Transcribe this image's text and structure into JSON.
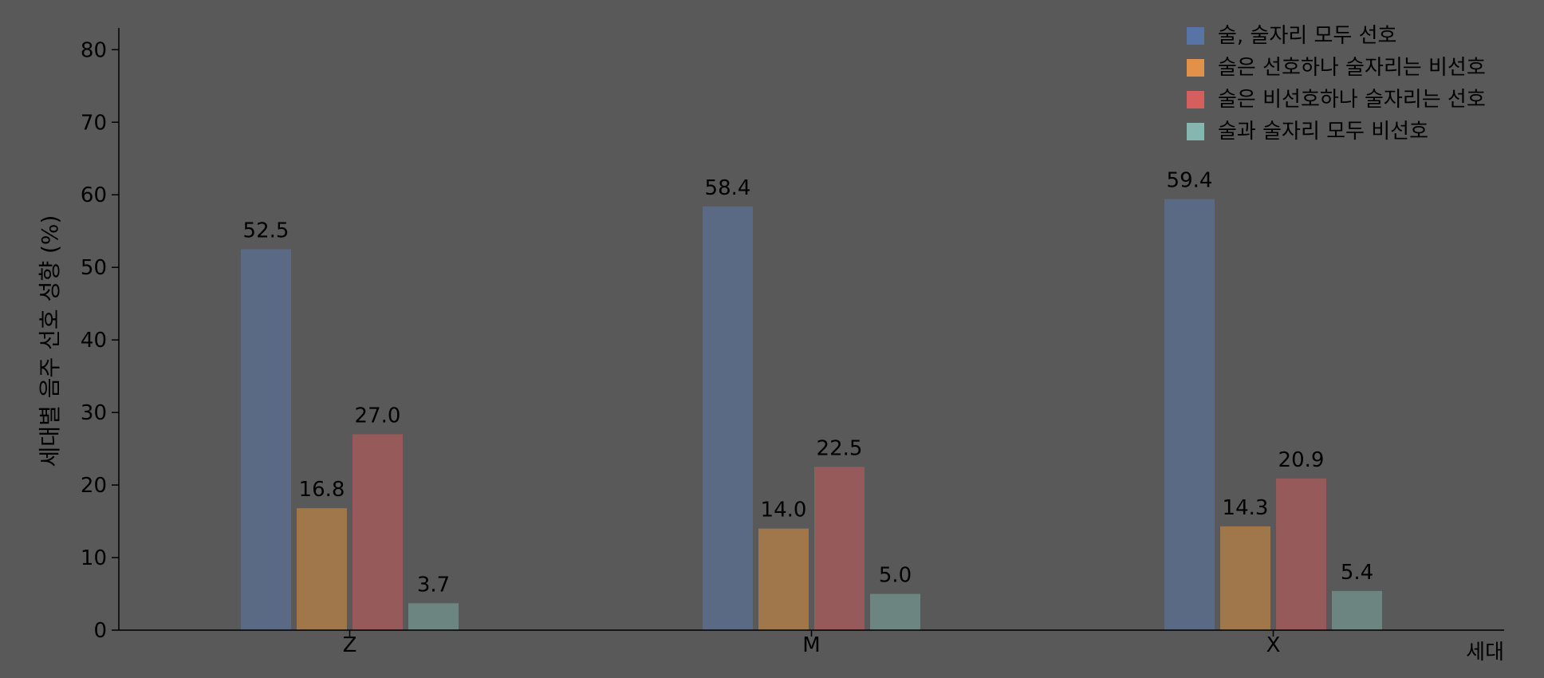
{
  "chart_data": {
    "type": "bar",
    "title": "",
    "xlabel": "세대",
    "ylabel": "세대별 음주 선호 성향 (%)",
    "categories": [
      "Z",
      "M",
      "X"
    ],
    "series": [
      {
        "name": "술, 술자리 모두 선호",
        "values": [
          52.5,
          58.4,
          59.4
        ],
        "color": "#5a6a85",
        "legend_color": "#5873a6"
      },
      {
        "name": "술은 선호하나 술자리는 비선호",
        "values": [
          16.8,
          14.0,
          14.3
        ],
        "color": "#a0774b",
        "legend_color": "#e1914a"
      },
      {
        "name": "술은 비선호하나 술자리는 선호",
        "values": [
          27.0,
          22.5,
          20.9
        ],
        "color": "#965a5a",
        "legend_color": "#d55f5f"
      },
      {
        "name": "술과 술자리 모두 비선호",
        "values": [
          3.7,
          5.0,
          5.4
        ],
        "color": "#6c8580",
        "legend_color": "#85b7b0"
      }
    ],
    "data_labels": [
      [
        "52.5",
        "58.4",
        "59.4"
      ],
      [
        "16.8",
        "14.0",
        "14.3"
      ],
      [
        "27.0",
        "22.5",
        "20.9"
      ],
      [
        "3.7",
        "5.0",
        "5.4"
      ]
    ],
    "yticks": [
      0,
      10,
      20,
      30,
      40,
      50,
      60,
      70,
      80
    ],
    "ylim": [
      0,
      83
    ],
    "grid": false,
    "legend_position": "top-right"
  }
}
